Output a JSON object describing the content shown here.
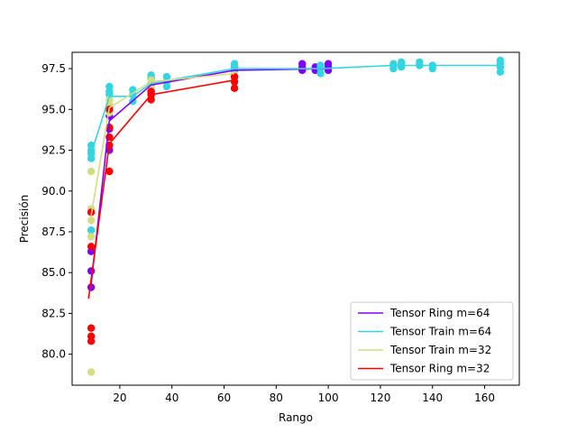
{
  "chart_data": {
    "type": "scatter",
    "title": "",
    "xlabel": "Rango",
    "ylabel": "Precisión",
    "xlim": [
      1.7,
      173.3
    ],
    "ylim": [
      78.1,
      98.5
    ],
    "xticks": [
      20,
      40,
      60,
      80,
      100,
      120,
      140,
      160
    ],
    "yticks": [
      80.0,
      82.5,
      85.0,
      87.5,
      90.0,
      92.5,
      95.0,
      97.5
    ],
    "grid": false,
    "legend": "bottom-right",
    "series": [
      {
        "name": "Tensor Ring m=64",
        "color": "#8000ff",
        "points": [
          [
            9,
            84.1
          ],
          [
            9,
            85.1
          ],
          [
            9,
            86.3
          ],
          [
            16,
            92.5
          ],
          [
            16,
            93.8
          ],
          [
            16,
            94.6
          ],
          [
            16,
            95.2
          ],
          [
            32,
            96.1
          ],
          [
            32,
            96.5
          ],
          [
            32,
            96.9
          ],
          [
            64,
            97.0
          ],
          [
            64,
            97.4
          ],
          [
            64,
            97.6
          ],
          [
            90,
            97.4
          ],
          [
            90,
            97.6
          ],
          [
            90,
            97.8
          ],
          [
            95,
            97.4
          ],
          [
            95,
            97.6
          ],
          [
            100,
            97.4
          ],
          [
            100,
            97.6
          ],
          [
            100,
            97.8
          ]
        ],
        "line": [
          [
            9,
            84.3
          ],
          [
            16,
            94.3
          ],
          [
            32,
            96.5
          ],
          [
            64,
            97.4
          ],
          [
            100,
            97.5
          ]
        ]
      },
      {
        "name": "Tensor Train m=64",
        "color": "#33d6e0",
        "points": [
          [
            9,
            92.0
          ],
          [
            9,
            92.3
          ],
          [
            9,
            92.5
          ],
          [
            9,
            92.8
          ],
          [
            9,
            87.6
          ],
          [
            16,
            95.9
          ],
          [
            16,
            96.1
          ],
          [
            16,
            96.4
          ],
          [
            25,
            95.5
          ],
          [
            25,
            95.9
          ],
          [
            25,
            96.2
          ],
          [
            32,
            96.6
          ],
          [
            32,
            96.9
          ],
          [
            32,
            97.1
          ],
          [
            38,
            96.4
          ],
          [
            38,
            96.7
          ],
          [
            38,
            97.0
          ],
          [
            64,
            97.1
          ],
          [
            64,
            97.4
          ],
          [
            64,
            97.6
          ],
          [
            64,
            97.8
          ],
          [
            97,
            97.2
          ],
          [
            97,
            97.5
          ],
          [
            97,
            97.7
          ],
          [
            125,
            97.5
          ],
          [
            125,
            97.7
          ],
          [
            125,
            97.8
          ],
          [
            128,
            97.6
          ],
          [
            128,
            97.8
          ],
          [
            128,
            97.9
          ],
          [
            135,
            97.7
          ],
          [
            135,
            97.9
          ],
          [
            140,
            97.5
          ],
          [
            140,
            97.7
          ],
          [
            166,
            97.3
          ],
          [
            166,
            97.6
          ],
          [
            166,
            97.8
          ],
          [
            166,
            98.0
          ]
        ],
        "line": [
          [
            9,
            92.3
          ],
          [
            16,
            95.8
          ],
          [
            25,
            95.8
          ],
          [
            32,
            96.6
          ],
          [
            64,
            97.5
          ],
          [
            97,
            97.5
          ],
          [
            125,
            97.7
          ],
          [
            166,
            97.7
          ]
        ]
      },
      {
        "name": "Tensor Train m=32",
        "color": "#d4dd80",
        "points": [
          [
            9,
            78.9
          ],
          [
            9,
            87.2
          ],
          [
            9,
            88.2
          ],
          [
            9,
            88.9
          ],
          [
            9,
            91.2
          ],
          [
            16,
            94.8
          ],
          [
            16,
            95.3
          ],
          [
            16,
            95.6
          ],
          [
            32,
            96.4
          ],
          [
            32,
            96.8
          ],
          [
            64,
            96.8
          ],
          [
            64,
            97.1
          ]
        ],
        "line": [
          [
            9,
            88.5
          ],
          [
            16,
            95.1
          ],
          [
            32,
            96.7
          ],
          [
            64,
            97.2
          ]
        ]
      },
      {
        "name": "Tensor Ring m=32",
        "color": "#ff0000",
        "points": [
          [
            9,
            80.8
          ],
          [
            9,
            81.1
          ],
          [
            9,
            81.6
          ],
          [
            9,
            86.6
          ],
          [
            9,
            88.7
          ],
          [
            16,
            91.2
          ],
          [
            16,
            92.8
          ],
          [
            16,
            93.3
          ],
          [
            16,
            93.9
          ],
          [
            16,
            95.0
          ],
          [
            32,
            95.6
          ],
          [
            32,
            95.9
          ],
          [
            32,
            96.1
          ],
          [
            64,
            96.3
          ],
          [
            64,
            96.7
          ],
          [
            64,
            97.0
          ]
        ],
        "line": [
          [
            8,
            83.4
          ],
          [
            16,
            92.9
          ],
          [
            32,
            95.9
          ],
          [
            64,
            96.8
          ]
        ]
      }
    ]
  }
}
